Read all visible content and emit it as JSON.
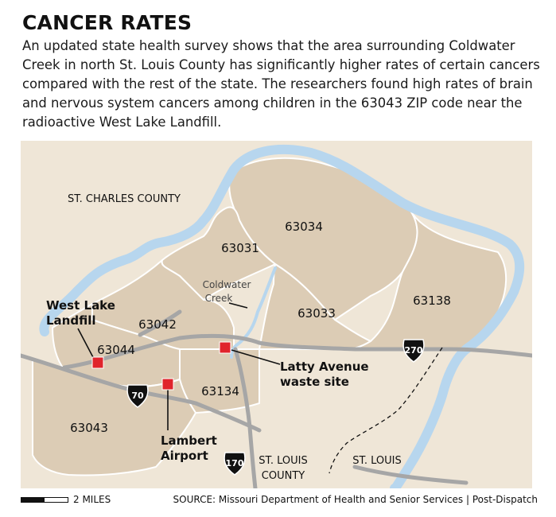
{
  "title": "CANCER RATES",
  "description": "An updated state health survey shows that the area surrounding Coldwater Creek in north St. Louis County has significantly higher rates of certain cancers compared with the rest of the state. The researchers found high rates of brain and nervous system cancers among children in the 63043 ZIP code near the radioactive West Lake Landfill.",
  "map": {
    "counties": {
      "st_charles": "ST. CHARLES COUNTY",
      "st_louis_county_line1": "ST. LOUIS",
      "st_louis_county_line2": "COUNTY",
      "st_louis_city": "ST. LOUIS"
    },
    "zip_codes": {
      "z63034": "63034",
      "z63031": "63031",
      "z63033": "63033",
      "z63138": "63138",
      "z63042": "63042",
      "z63044": "63044",
      "z63134": "63134",
      "z63043": "63043"
    },
    "creek": {
      "line1": "Coldwater",
      "line2": "Creek"
    },
    "sites": {
      "west_lake_line1": "West Lake",
      "west_lake_line2": "Landfill",
      "latty_line1": "Latty Avenue",
      "latty_line2": "waste site",
      "lambert_line1": "Lambert",
      "lambert_line2": "Airport"
    },
    "highways": {
      "i270": "270",
      "i70": "70",
      "i170": "170"
    },
    "colors": {
      "background": "#efe6d7",
      "zip_fill": "#dcccb5",
      "water": "#b7d6ee",
      "roads": "#a6a6a6",
      "site_marker": "#e0242c",
      "zip_border": "#ffffff"
    }
  },
  "footer": {
    "scale_label": "2 MILES",
    "source": "SOURCE: Missouri Department of Health and Senior Services | Post-Dispatch"
  }
}
